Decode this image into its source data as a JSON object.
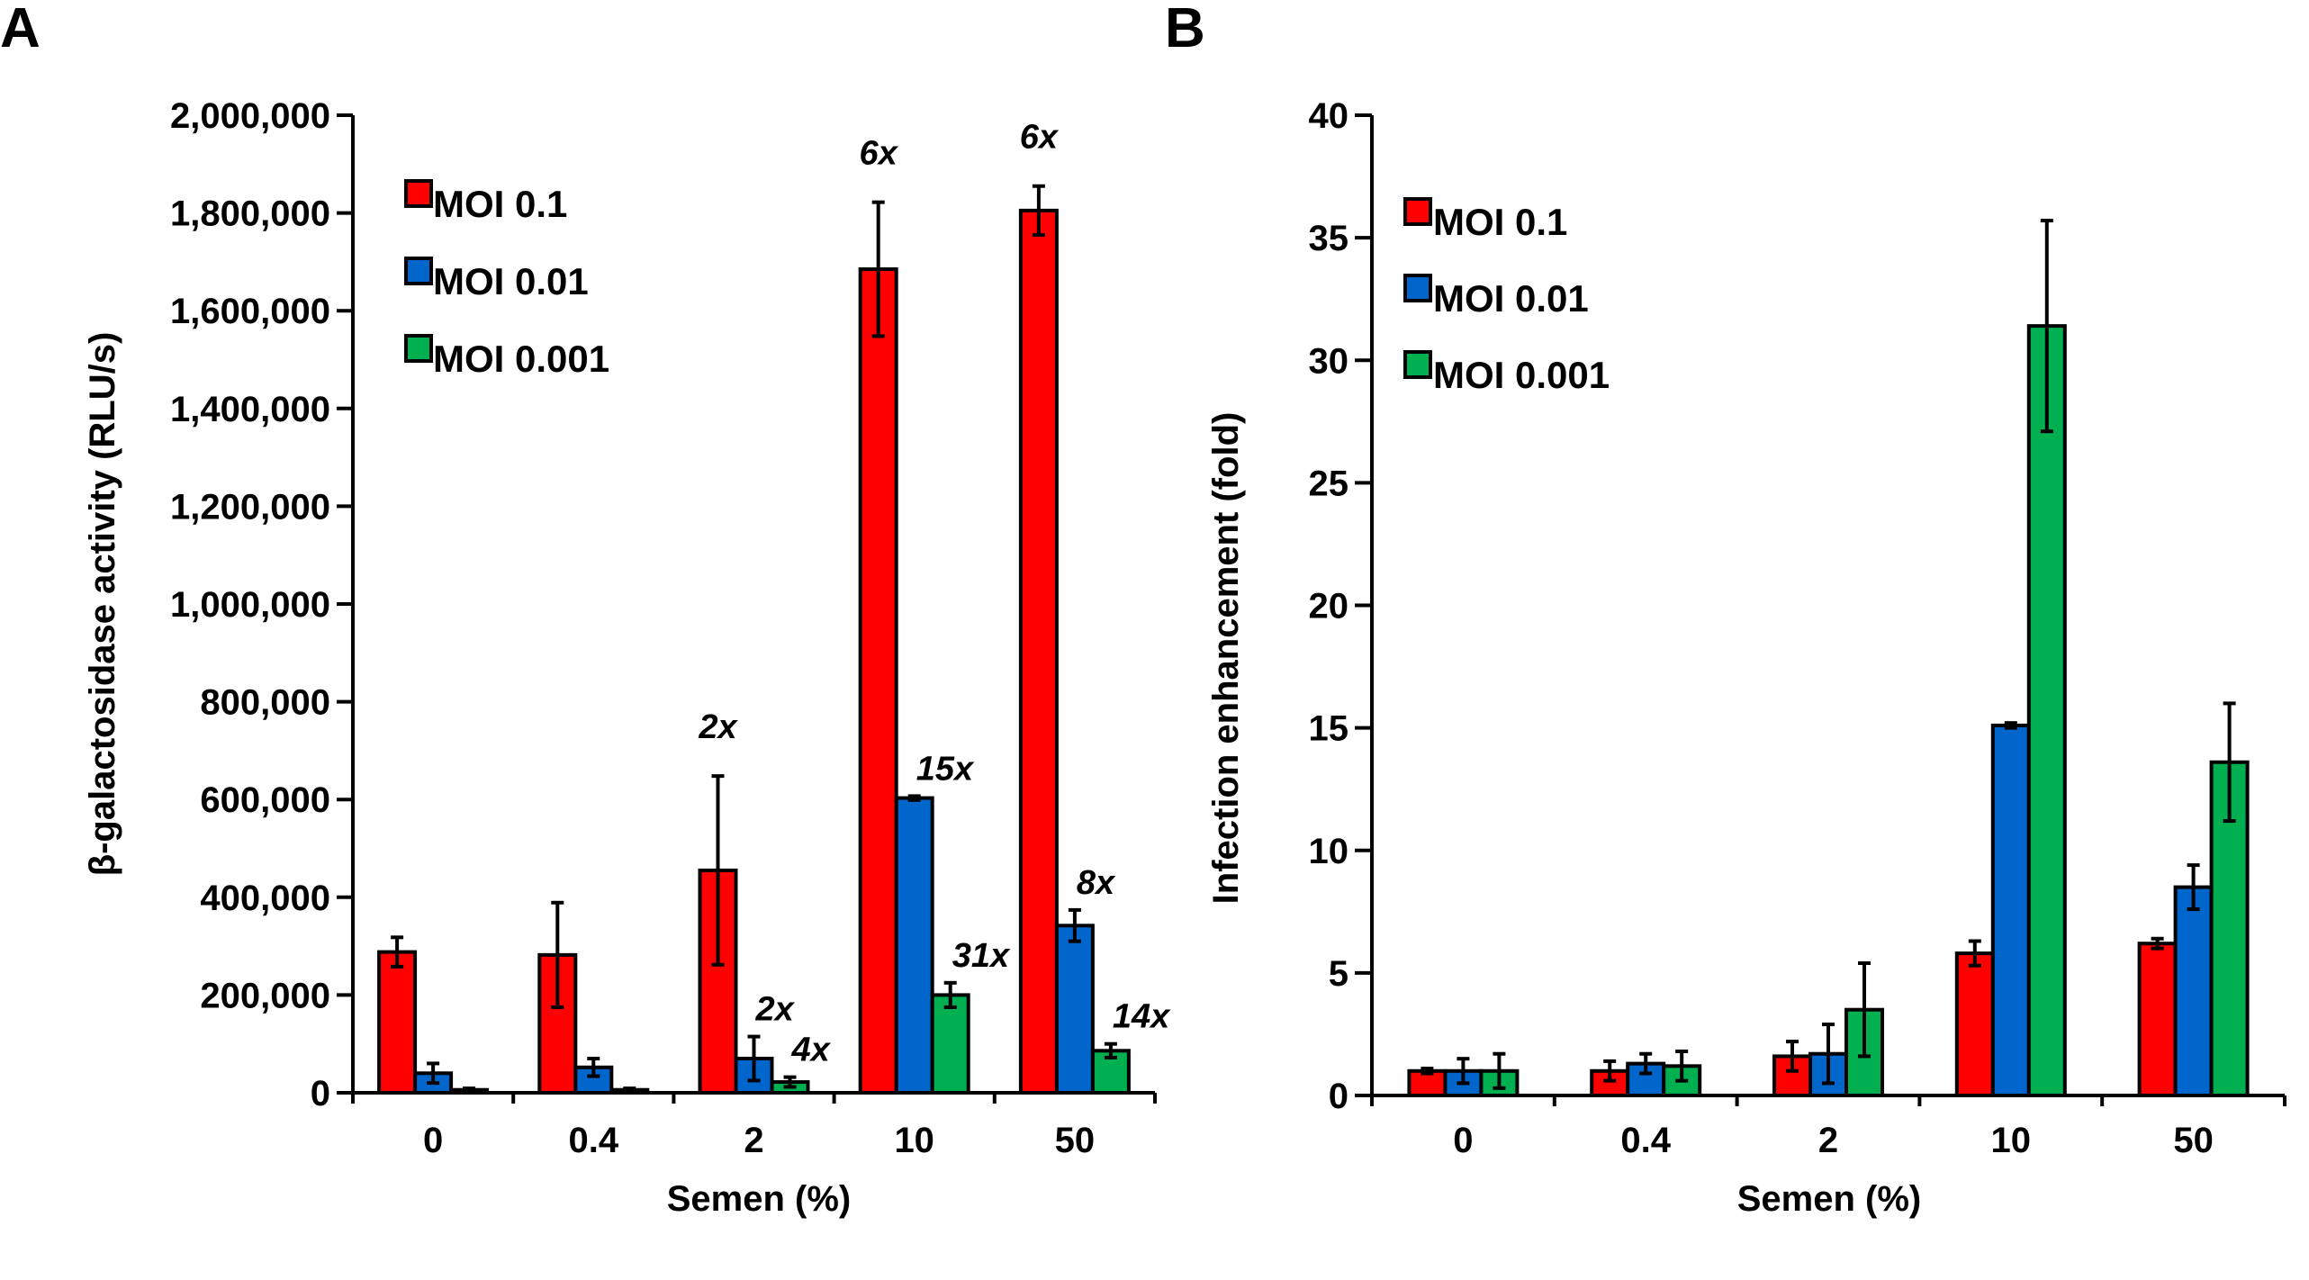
{
  "chart_data": [
    {
      "panel_label": "A",
      "type": "bar",
      "xlabel": "Semen (%)",
      "ylabel": "β-galactosidase activity  (RLU/s)",
      "ylim": [
        0,
        2000000
      ],
      "yticks": [
        0,
        200000,
        400000,
        600000,
        800000,
        1000000,
        1200000,
        1400000,
        1600000,
        1800000,
        2000000
      ],
      "ytick_labels": [
        "0",
        "200,000",
        "400,000",
        "600,000",
        "800,000",
        "1,000,000",
        "1,200,000",
        "1,400,000",
        "1,600,000",
        "1,800,000",
        "2,000,000"
      ],
      "categories": [
        "0",
        "0.4",
        "2",
        "10",
        "50"
      ],
      "legend_position": "top-left",
      "grid": false,
      "series": [
        {
          "name": "MOI 0.1",
          "color": "#ff0000",
          "values": [
            288000,
            282000,
            455000,
            1685000,
            1805000
          ],
          "errors": [
            30000,
            107000,
            193000,
            137000,
            50000
          ],
          "annotations": [
            "",
            "",
            "2x",
            "6x",
            "6x"
          ]
        },
        {
          "name": "MOI 0.01",
          "color": "#0066cc",
          "values": [
            40000,
            52000,
            70000,
            603000,
            342000
          ],
          "errors": [
            20000,
            18000,
            45000,
            4000,
            32000
          ],
          "annotations": [
            "",
            "",
            "2x",
            "15x",
            "8x"
          ]
        },
        {
          "name": "MOI 0.001",
          "color": "#00b050",
          "values": [
            6000,
            6000,
            22000,
            200000,
            86000
          ],
          "errors": [
            3000,
            3000,
            10000,
            25000,
            14000
          ],
          "annotations": [
            "",
            "",
            "4x",
            "31x",
            "14x"
          ]
        }
      ]
    },
    {
      "panel_label": "B",
      "type": "bar",
      "xlabel": "Semen (%)",
      "ylabel": "Infection enhancement (fold)",
      "ylim": [
        0,
        40
      ],
      "yticks": [
        0,
        5,
        10,
        15,
        20,
        25,
        30,
        35,
        40
      ],
      "ytick_labels": [
        "0",
        "5",
        "10",
        "15",
        "20",
        "25",
        "30",
        "35",
        "40"
      ],
      "categories": [
        "0",
        "0.4",
        "2",
        "10",
        "50"
      ],
      "legend_position": "top-left",
      "grid": false,
      "series": [
        {
          "name": "MOI 0.1",
          "color": "#ff0000",
          "values": [
            1.0,
            1.0,
            1.6,
            5.8,
            6.2
          ],
          "errors": [
            0.1,
            0.4,
            0.6,
            0.5,
            0.2
          ]
        },
        {
          "name": "MOI 0.01",
          "color": "#0066cc",
          "values": [
            1.0,
            1.3,
            1.7,
            15.1,
            8.5
          ],
          "errors": [
            0.5,
            0.4,
            1.2,
            0.1,
            0.9
          ]
        },
        {
          "name": "MOI 0.001",
          "color": "#00b050",
          "values": [
            1.0,
            1.2,
            3.5,
            31.4,
            13.6
          ],
          "errors": [
            0.7,
            0.6,
            1.9,
            4.3,
            2.4
          ]
        }
      ]
    }
  ]
}
